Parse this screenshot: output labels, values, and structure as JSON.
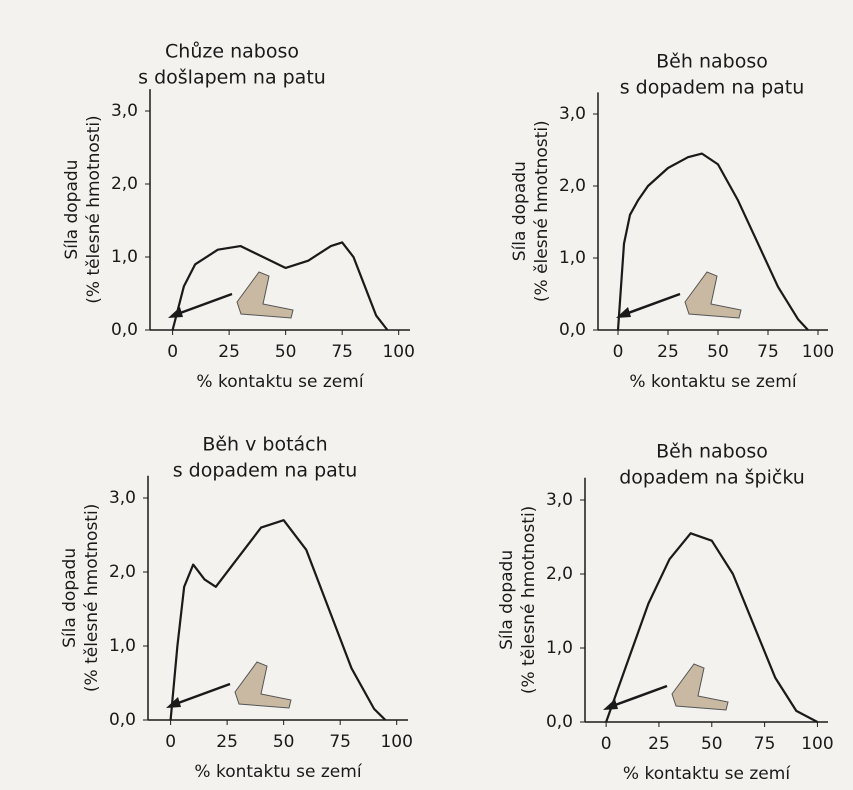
{
  "chart_data": [
    {
      "type": "line",
      "title": [
        "Chůze naboso",
        "s došlapem na patu"
      ],
      "ylabel": [
        "Síla dopadu",
        "(% tělesné hmotnosti)"
      ],
      "xlabel": "% kontaktu se zemí",
      "x": [
        0,
        5,
        10,
        20,
        30,
        40,
        50,
        60,
        70,
        75,
        80,
        85,
        90,
        95
      ],
      "values": [
        0,
        0.6,
        0.9,
        1.1,
        1.15,
        1.0,
        0.85,
        0.95,
        1.15,
        1.2,
        1.0,
        0.6,
        0.2,
        0
      ],
      "color": "#1a1a1a",
      "xlim": [
        -10,
        105
      ],
      "ylim": [
        0,
        3.3
      ],
      "xticks": [
        0,
        25,
        50,
        75,
        100
      ],
      "yticks": [
        {
          "value": 0,
          "label": "0,0"
        },
        {
          "value": 1,
          "label": "1,0"
        },
        {
          "value": 2,
          "label": "2,0"
        },
        {
          "value": 3,
          "label": "3,0"
        }
      ]
    },
    {
      "type": "line",
      "title": [
        "Běh naboso",
        "s dopadem na patu"
      ],
      "ylabel": [
        "Síla dopadu",
        "(% ělesné hmotnosti)"
      ],
      "xlabel": "% kontaktu se zemí",
      "x": [
        0,
        3,
        6,
        10,
        15,
        25,
        35,
        42,
        50,
        60,
        70,
        80,
        90,
        95
      ],
      "values": [
        0,
        1.2,
        1.6,
        1.8,
        2.0,
        2.25,
        2.4,
        2.45,
        2.3,
        1.8,
        1.2,
        0.6,
        0.15,
        0
      ],
      "color": "#1a1a1a",
      "xlim": [
        -10,
        105
      ],
      "ylim": [
        0,
        3.3
      ],
      "xticks": [
        0,
        25,
        50,
        75,
        100
      ],
      "yticks": [
        {
          "value": 0,
          "label": "0,0"
        },
        {
          "value": 1,
          "label": "1,0"
        },
        {
          "value": 2,
          "label": "2,0"
        },
        {
          "value": 3,
          "label": "3,0"
        }
      ]
    },
    {
      "type": "line",
      "title": [
        "Běh v botách",
        "s dopadem na patu"
      ],
      "ylabel": [
        "Síla dopadu",
        "(% tělesné hmotnosti)"
      ],
      "xlabel": "% kontaktu se zemí",
      "x": [
        0,
        3,
        6,
        10,
        15,
        20,
        30,
        40,
        50,
        60,
        70,
        80,
        90,
        95
      ],
      "values": [
        0,
        1.0,
        1.8,
        2.1,
        1.9,
        1.8,
        2.2,
        2.6,
        2.7,
        2.3,
        1.5,
        0.7,
        0.15,
        0
      ],
      "color": "#1a1a1a",
      "xlim": [
        -10,
        105
      ],
      "ylim": [
        0,
        3.3
      ],
      "xticks": [
        0,
        25,
        50,
        75,
        100
      ],
      "yticks": [
        {
          "value": 0,
          "label": "0,0"
        },
        {
          "value": 1,
          "label": "1,0"
        },
        {
          "value": 2,
          "label": "2,0"
        },
        {
          "value": 3,
          "label": "3,0"
        }
      ]
    },
    {
      "type": "line",
      "title": [
        "Běh naboso",
        "dopadem na špičku"
      ],
      "ylabel": [
        "Síla dopadu",
        "(% tělesné hmotnosti)"
      ],
      "xlabel": "% kontaktu se zemí",
      "x": [
        0,
        5,
        10,
        20,
        30,
        40,
        50,
        60,
        70,
        80,
        90,
        100
      ],
      "values": [
        0,
        0.4,
        0.8,
        1.6,
        2.2,
        2.55,
        2.45,
        2.0,
        1.3,
        0.6,
        0.15,
        0
      ],
      "color": "#1a1a1a",
      "xlim": [
        -10,
        105
      ],
      "ylim": [
        0,
        3.3
      ],
      "xticks": [
        0,
        25,
        50,
        75,
        100
      ],
      "yticks": [
        {
          "value": 0,
          "label": "0,0"
        },
        {
          "value": 1,
          "label": "1,0"
        },
        {
          "value": 2,
          "label": "2,0"
        },
        {
          "value": 3,
          "label": "3,0"
        }
      ]
    }
  ]
}
